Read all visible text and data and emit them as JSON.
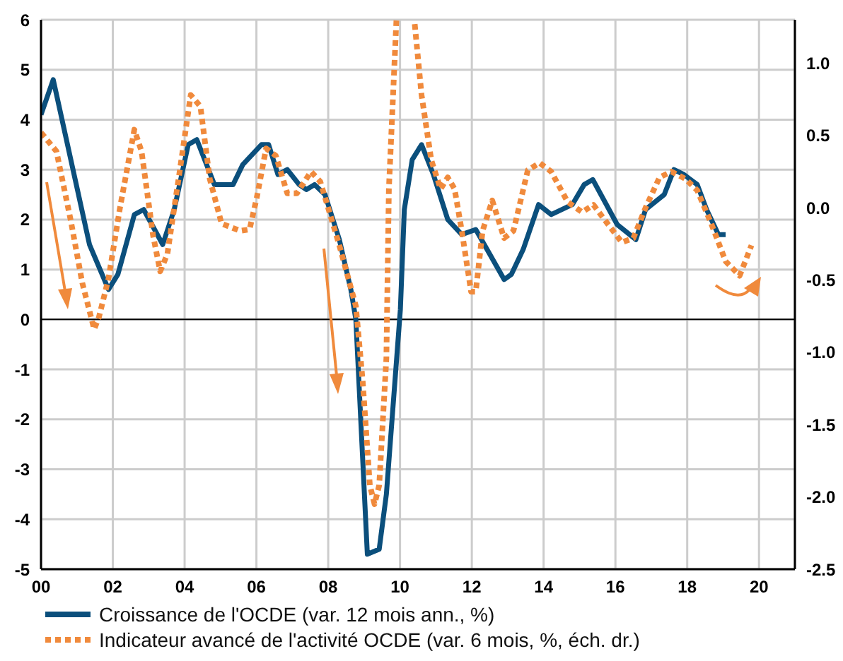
{
  "chart_data": {
    "type": "line",
    "xlim": [
      2000,
      2021
    ],
    "xticks": [
      {
        "value": 2000,
        "label": "00"
      },
      {
        "value": 2002,
        "label": "02"
      },
      {
        "value": 2004,
        "label": "04"
      },
      {
        "value": 2006,
        "label": "06"
      },
      {
        "value": 2008,
        "label": "08"
      },
      {
        "value": 2010,
        "label": "10"
      },
      {
        "value": 2012,
        "label": "12"
      },
      {
        "value": 2014,
        "label": "14"
      },
      {
        "value": 2016,
        "label": "16"
      },
      {
        "value": 2018,
        "label": "18"
      },
      {
        "value": 2020,
        "label": "20"
      }
    ],
    "ylim": [
      -5,
      6
    ],
    "yticks": [
      -5,
      -4,
      -3,
      -2,
      -1,
      0,
      1,
      2,
      3,
      4,
      5,
      6
    ],
    "y2lim": [
      -2.5,
      1.3
    ],
    "y2ticks": [
      {
        "value": -2.5,
        "label": "-2.5"
      },
      {
        "value": -2,
        "label": "-2.0"
      },
      {
        "value": -1.5,
        "label": "-1.5"
      },
      {
        "value": -1,
        "label": "-1.0"
      },
      {
        "value": -0.5,
        "label": "-0.5"
      },
      {
        "value": 0,
        "label": "0.0"
      },
      {
        "value": 0.5,
        "label": "0.5"
      },
      {
        "value": 1,
        "label": "1.0"
      }
    ],
    "grid": true,
    "legend": "bottom",
    "marker": "none",
    "ref_lines": [
      {
        "axis": "y",
        "value": 0,
        "color": "#000000"
      }
    ],
    "series": [
      {
        "name": "Croissance de l'OCDE (var. 12 mois ann., %)",
        "color": "#0b4f7c",
        "line_style": "solid",
        "x": [
          2000,
          2000.34,
          2001.35,
          2001.88,
          2002.14,
          2002.6,
          2002.86,
          2003.39,
          2003.71,
          2004.1,
          2004.34,
          2004.83,
          2005.35,
          2005.62,
          2006.14,
          2006.34,
          2006.6,
          2006.86,
          2007.19,
          2007.39,
          2007.62,
          2007.91,
          2008.31,
          2008.63,
          2008.77,
          2009.09,
          2009.42,
          2009.62,
          2010.01,
          2010.12,
          2010.34,
          2010.6,
          2010.93,
          2011.33,
          2011.72,
          2012.11,
          2012.9,
          2013.1,
          2013.43,
          2013.86,
          2014.21,
          2014.8,
          2015.13,
          2015.37,
          2016.05,
          2016.57,
          2016.84,
          2017.36,
          2017.63,
          2017.91,
          2018.28,
          2018.54,
          2018.87,
          2019.07
        ],
        "values": [
          4.1,
          4.8,
          1.5,
          0.6,
          0.9,
          2.1,
          2.2,
          1.5,
          2.2,
          3.5,
          3.6,
          2.7,
          2.7,
          3.1,
          3.5,
          3.5,
          2.9,
          3.0,
          2.7,
          2.6,
          2.7,
          2.5,
          1.6,
          0.6,
          0.0,
          -4.7,
          -4.6,
          -3.5,
          0.2,
          2.2,
          3.2,
          3.5,
          2.9,
          2.0,
          1.7,
          1.8,
          0.8,
          0.9,
          1.4,
          2.3,
          2.1,
          2.3,
          2.7,
          2.8,
          1.9,
          1.6,
          2.2,
          2.5,
          3.0,
          2.9,
          2.7,
          2.2,
          1.7,
          1.7
        ]
      },
      {
        "name": "Indicateur avancé de l'activité OCDE (var. 6 mois, %, éch. dr.)",
        "color": "#f08a3c",
        "line_style": "dotted",
        "axis": "y2",
        "x": [
          2000,
          2000.43,
          2000.83,
          2001.15,
          2001.48,
          2001.61,
          2001.88,
          2002.2,
          2002.6,
          2002.8,
          2003.12,
          2003.32,
          2003.52,
          2003.85,
          2004.17,
          2004.44,
          2004.7,
          2005.03,
          2005.55,
          2005.81,
          2006.01,
          2006.27,
          2006.54,
          2006.86,
          2007.13,
          2007.52,
          2007.78,
          2008.31,
          2008.77,
          2008.96,
          2009.16,
          2009.29,
          2009.42,
          2009.62,
          2009.69,
          2009.9,
          2010.15,
          2010.41,
          2010.6,
          2010.87,
          2011.13,
          2011.33,
          2011.52,
          2011.72,
          2011.98,
          2012.11,
          2012.3,
          2012.57,
          2012.9,
          2013.16,
          2013.56,
          2013.89,
          2014.21,
          2014.67,
          2015.07,
          2015.39,
          2015.72,
          2016.18,
          2016.5,
          2016.84,
          2017.23,
          2017.56,
          2017.95,
          2018.28,
          2018.67,
          2019.07,
          2019.46,
          2019.79
        ],
        "values": [
          0.52,
          0.39,
          -0.09,
          -0.52,
          -0.84,
          -0.76,
          -0.49,
          0.0,
          0.54,
          0.39,
          -0.19,
          -0.44,
          -0.32,
          0.23,
          0.78,
          0.7,
          0.2,
          -0.11,
          -0.16,
          -0.15,
          0.07,
          0.41,
          0.36,
          0.1,
          0.1,
          0.25,
          0.18,
          -0.26,
          -0.68,
          -1.2,
          -1.92,
          -2.05,
          -1.92,
          -1.04,
          0.13,
          1.3,
          null,
          1.27,
          0.78,
          0.33,
          0.13,
          0.21,
          0.13,
          -0.16,
          -0.58,
          -0.58,
          -0.16,
          0.05,
          -0.21,
          -0.16,
          0.26,
          0.31,
          0.25,
          0.04,
          -0.03,
          0.02,
          -0.09,
          -0.24,
          -0.21,
          0.0,
          0.21,
          0.25,
          0.2,
          0.12,
          -0.11,
          -0.37,
          -0.47,
          -0.26
        ]
      }
    ]
  }
}
